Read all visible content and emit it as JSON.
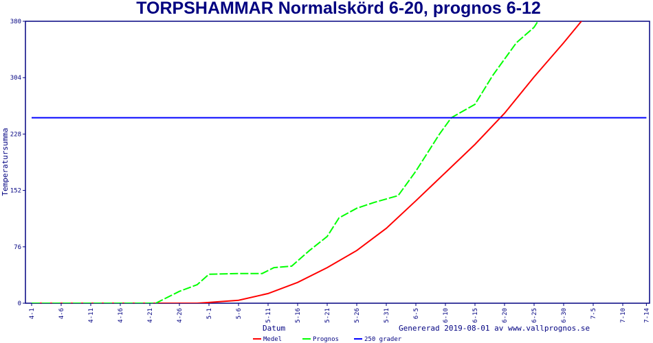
{
  "chart_data": {
    "type": "line",
    "title": "TORPSHAMMAR Normalskörd 6-20, prognos 6-12",
    "xlabel": "Datum",
    "ylabel": "Temperatursumma",
    "note": "Genererad 2019-08-01 av www.vallprognos.se",
    "ylim": [
      0,
      380
    ],
    "yticks": [
      "0",
      "76",
      "152",
      "228",
      "304",
      "380"
    ],
    "xticks": [
      "4-1",
      "4-6",
      "4-11",
      "4-16",
      "4-21",
      "4-26",
      "5-1",
      "5-6",
      "5-11",
      "5-16",
      "5-21",
      "5-26",
      "5-31",
      "6-5",
      "6-10",
      "6-15",
      "6-20",
      "6-25",
      "6-30",
      "7-5",
      "7-10",
      "7-14"
    ],
    "grid": false,
    "legend_position": "bottom",
    "series": [
      {
        "name": "Medel",
        "color": "#ff0000",
        "style": "solid",
        "x": [
          "4-1",
          "4-29",
          "5-1",
          "5-6",
          "5-11",
          "5-16",
          "5-21",
          "5-26",
          "5-31",
          "6-5",
          "6-10",
          "6-15",
          "6-20",
          "6-25",
          "6-30",
          "7-3",
          "7-5"
        ],
        "y": [
          0,
          0,
          1,
          4,
          13,
          28,
          48,
          71,
          101,
          138,
          176,
          214,
          256,
          305,
          351,
          380,
          400
        ]
      },
      {
        "name": "Prognos",
        "color": "#00ff00",
        "style": "dashed",
        "x": [
          "4-1",
          "4-22",
          "4-26",
          "4-29",
          "5-1",
          "5-6",
          "5-10",
          "5-12",
          "5-15",
          "5-18",
          "5-21",
          "5-23",
          "5-26",
          "5-29",
          "6-2",
          "6-5",
          "6-9",
          "6-11",
          "6-15",
          "6-18",
          "6-22",
          "6-25",
          "6-28"
        ],
        "y": [
          0,
          0,
          16,
          25,
          39,
          40,
          40,
          48,
          50,
          71,
          90,
          115,
          128,
          136,
          145,
          178,
          228,
          250,
          268,
          307,
          351,
          372,
          409
        ]
      },
      {
        "name": "250 grader",
        "color": "#0000ff",
        "style": "solid",
        "x": [
          "4-1",
          "7-14"
        ],
        "y": [
          250,
          250
        ]
      }
    ]
  }
}
